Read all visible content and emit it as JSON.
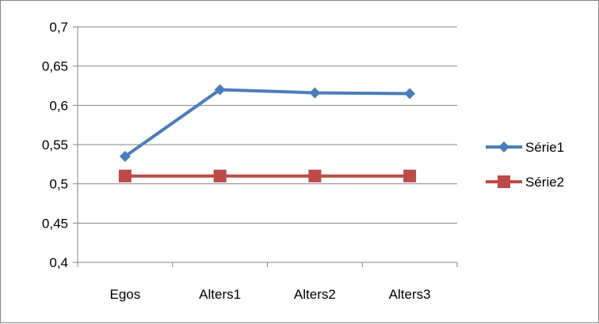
{
  "chart_data": {
    "type": "line",
    "title": "",
    "xlabel": "",
    "ylabel": "",
    "categories": [
      "Egos",
      "Alters1",
      "Alters2",
      "Alters3"
    ],
    "ylim": [
      0.4,
      0.7
    ],
    "yticks": [
      "0,4",
      "0,45",
      "0,5",
      "0,55",
      "0,6",
      "0,65",
      "0,7"
    ],
    "ytick_values": [
      0.4,
      0.45,
      0.5,
      0.55,
      0.6,
      0.65,
      0.7
    ],
    "grid": true,
    "legend_position": "right",
    "series": [
      {
        "name": "Série1",
        "values": [
          0.535,
          0.62,
          0.616,
          0.615
        ],
        "color": "#4a7ebb",
        "marker": "diamond"
      },
      {
        "name": "Série2",
        "values": [
          0.51,
          0.51,
          0.51,
          0.51
        ],
        "color": "#be4b48",
        "marker": "square"
      }
    ]
  }
}
